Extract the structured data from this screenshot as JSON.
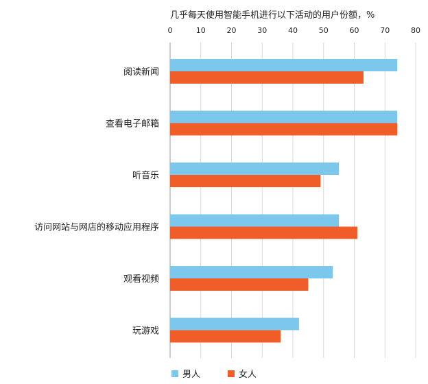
{
  "chart_data": {
    "type": "bar",
    "orientation": "horizontal",
    "title": "几乎每天使用智能手机进行以下活动的用户份额，%",
    "xlim": [
      0,
      80
    ],
    "xticks": [
      0,
      10,
      20,
      30,
      40,
      50,
      60,
      70,
      80
    ],
    "grid": true,
    "legend_position": "bottom-left",
    "categories": [
      "阅读新闻",
      "查看电子邮箱",
      "听音乐",
      "访问网站与网店的移动应用程序",
      "观看视频",
      "玩游戏"
    ],
    "series": [
      {
        "name": "男人",
        "color": "#7cc8ec",
        "values": [
          74,
          74,
          55,
          55,
          53,
          42
        ]
      },
      {
        "name": "女人",
        "color": "#f15d29",
        "values": [
          63,
          74,
          49,
          61,
          45,
          36
        ]
      }
    ]
  }
}
